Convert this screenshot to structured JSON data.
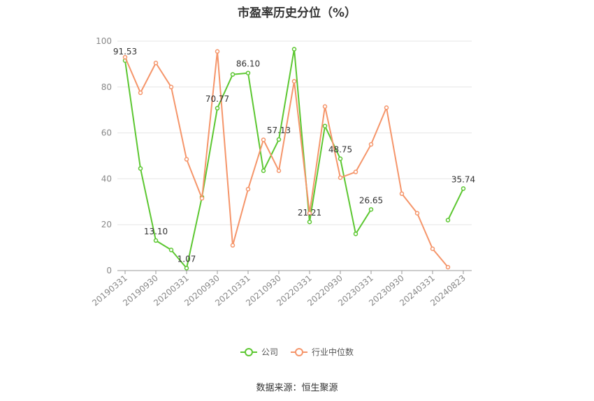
{
  "title": "市盈率历史分位（%）",
  "source": "数据来源：恒生聚源",
  "legend": {
    "company_label": "公司",
    "industry_label": "行业中位数"
  },
  "colors": {
    "company": "#5cc731",
    "industry": "#f5956a",
    "axis": "#999999",
    "grid": "#e6e6e6"
  },
  "chart_data": {
    "type": "line",
    "title": "市盈率历史分位（%）",
    "xlabel": "",
    "ylabel": "",
    "ylim": [
      0,
      100
    ],
    "yticks": [
      0,
      20,
      40,
      60,
      80,
      100
    ],
    "x": [
      "20190331",
      "20190630",
      "20190930",
      "20191231",
      "20200331",
      "20200630",
      "20200930",
      "20201231",
      "20210331",
      "20210630",
      "20210930",
      "20211231",
      "20220331",
      "20220630",
      "20220930",
      "20221231",
      "20230331",
      "20230630",
      "20230930",
      "20231231",
      "20240331",
      "20240630",
      "20240823"
    ],
    "x_tick_labels": [
      "20190331",
      "20190930",
      "20200331",
      "20200930",
      "20210331",
      "20210930",
      "20220331",
      "20220930",
      "20230331",
      "20230930",
      "20240331",
      "20240823"
    ],
    "grid": true,
    "legend_position": "bottom",
    "series": [
      {
        "name": "公司",
        "values": [
          91.53,
          44.5,
          13.1,
          9.0,
          1.07,
          32.0,
          70.77,
          85.5,
          86.1,
          43.5,
          57.13,
          96.5,
          21.21,
          63.0,
          48.75,
          16.0,
          26.65,
          null,
          null,
          null,
          null,
          22.0,
          35.74
        ],
        "labels": {
          "0": "91.53",
          "2": "13.10",
          "4": "1.07",
          "6": "70.77",
          "8": "86.10",
          "10": "57.13",
          "12": "21.21",
          "14": "48.75",
          "16": "26.65",
          "22": "35.74"
        }
      },
      {
        "name": "行业中位数",
        "values": [
          93.0,
          77.5,
          90.5,
          80.0,
          48.5,
          31.5,
          95.5,
          11.0,
          35.5,
          57.0,
          43.5,
          82.5,
          25.0,
          71.5,
          40.5,
          43.0,
          55.0,
          71.0,
          33.5,
          25.0,
          9.5,
          1.5,
          null
        ]
      }
    ]
  }
}
